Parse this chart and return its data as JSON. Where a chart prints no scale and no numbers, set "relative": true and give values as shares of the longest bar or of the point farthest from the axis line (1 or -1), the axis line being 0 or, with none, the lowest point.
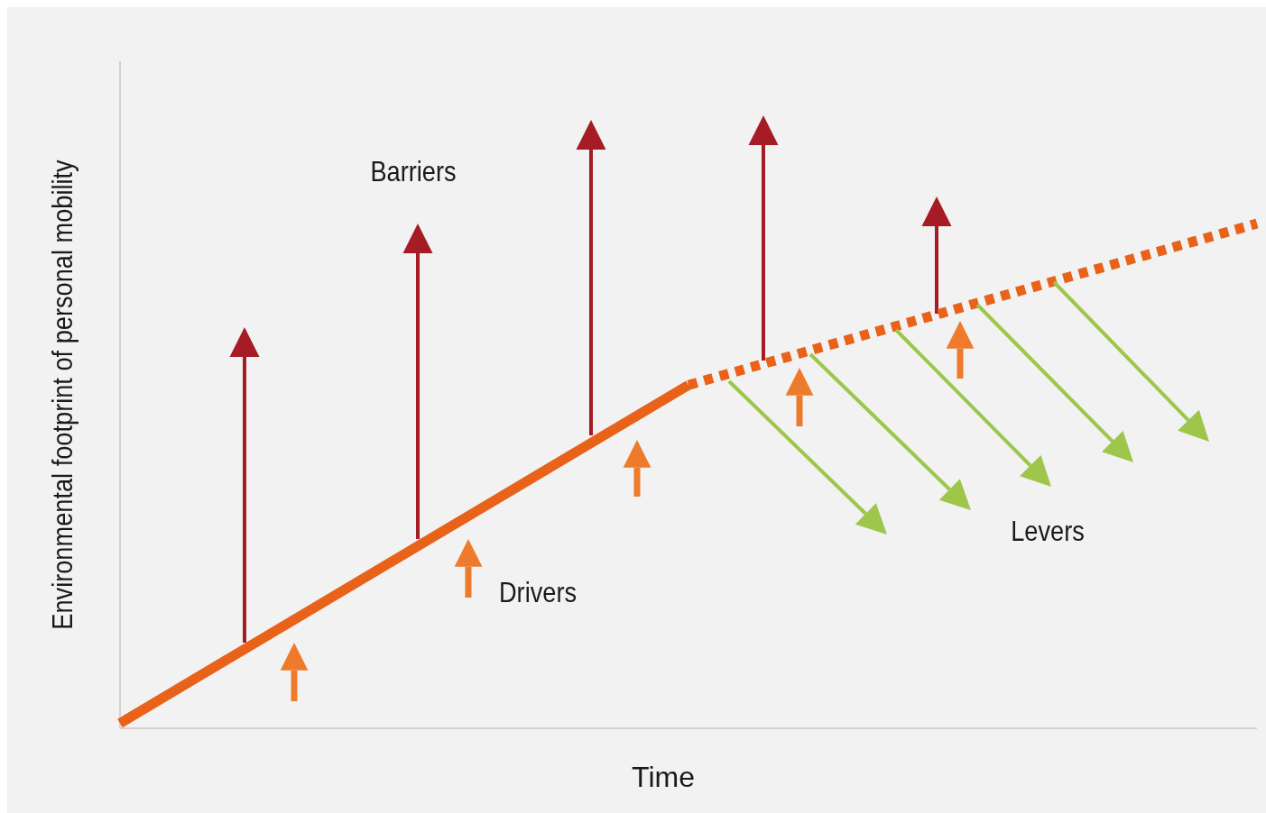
{
  "chart_data": {
    "type": "line",
    "relative": true,
    "xlabel": "Time",
    "ylabel": "Environmental footprint of personal mobility",
    "categories": [
      null,
      null,
      null
    ],
    "series": [
      {
        "color": "#e8621a",
        "line_style": "solid",
        "values": [
          0.01,
          0.68,
          null
        ]
      },
      {
        "color": "#e8621a",
        "line_style": "dashed",
        "values": [
          null,
          0.68,
          1
        ]
      }
    ],
    "annotations": [
      "Barriers",
      "Drivers",
      "Levers"
    ]
  }
}
